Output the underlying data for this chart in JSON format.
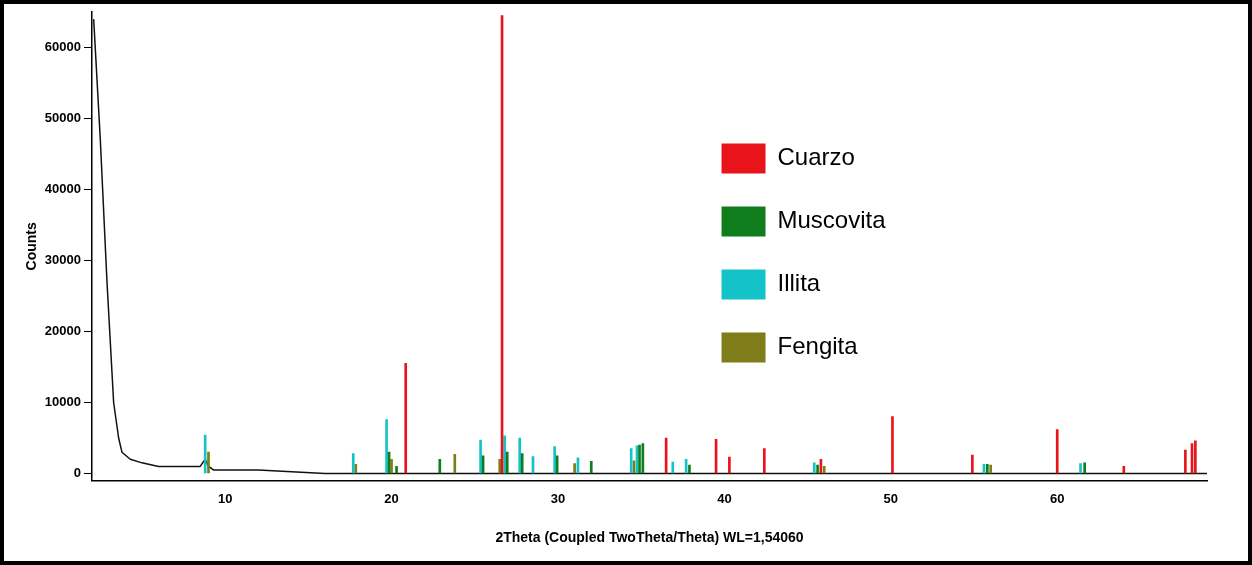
{
  "chart_data": {
    "type": "line",
    "xlabel": "2Theta (Coupled TwoTheta/Theta) WL=1,54060",
    "ylabel": "Counts",
    "xlim": [
      2,
      69
    ],
    "ylim": [
      -1000,
      65000
    ],
    "xticks": [
      10,
      20,
      30,
      40,
      50,
      60
    ],
    "yticks": [
      0,
      10000,
      20000,
      30000,
      40000,
      50000,
      60000
    ],
    "legend": "right",
    "grid": false,
    "marker": "none",
    "series": [
      {
        "color": "#111111",
        "x": [
          2.1,
          2.5,
          2.9,
          3.3,
          3.6,
          3.8,
          4.3,
          5,
          6,
          8.5,
          8.8,
          9.0,
          9.3,
          12,
          16,
          20,
          30,
          40,
          50,
          60,
          69
        ],
        "values": [
          64000,
          47000,
          27000,
          10000,
          5000,
          3000,
          2000,
          1500,
          1000,
          1000,
          2000,
          1000,
          500,
          500,
          0,
          0,
          0,
          0,
          0,
          0,
          0
        ]
      },
      {
        "type": "bar",
        "name": "Cuarzo",
        "color": "#e8141a",
        "x": [
          20.85,
          26.64,
          36.5,
          39.5,
          40.3,
          42.4,
          45.8,
          50.1,
          54.9,
          60.0,
          64.0,
          67.7,
          68.1,
          68.3
        ],
        "values": [
          15500,
          64500,
          5000,
          4800,
          2300,
          3500,
          2000,
          8000,
          2600,
          6200,
          1000,
          3300,
          4200,
          4600
        ]
      },
      {
        "type": "bar",
        "name": "Muscovita",
        "color": "#0f7d1b",
        "x": [
          19.85,
          20.3,
          22.9,
          25.5,
          26.95,
          27.85,
          29.95,
          32.0,
          34.9,
          35.1,
          37.9,
          45.6,
          55.8,
          61.65
        ],
        "values": [
          3000,
          1000,
          2000,
          2500,
          3000,
          2800,
          2500,
          1700,
          4000,
          4200,
          1200,
          1200,
          1300,
          1500
        ]
      },
      {
        "type": "bar",
        "name": "Illita",
        "color": "#14c3c8",
        "x": [
          8.8,
          17.7,
          19.7,
          25.35,
          26.8,
          27.7,
          28.5,
          29.8,
          31.2,
          34.4,
          34.75,
          36.9,
          37.7,
          45.4,
          55.6,
          61.4
        ],
        "values": [
          5400,
          2800,
          7600,
          4700,
          5300,
          5000,
          2400,
          3800,
          2200,
          3500,
          3900,
          1600,
          2000,
          1500,
          1300,
          1400
        ]
      },
      {
        "type": "bar",
        "name": "Fengita",
        "color": "#7f7d1a",
        "x": [
          9.0,
          17.85,
          20.0,
          23.8,
          26.5,
          31.0,
          34.57,
          46.0,
          56.0
        ],
        "values": [
          3000,
          1300,
          2000,
          2700,
          2000,
          1400,
          1800,
          1000,
          1200
        ]
      }
    ]
  }
}
